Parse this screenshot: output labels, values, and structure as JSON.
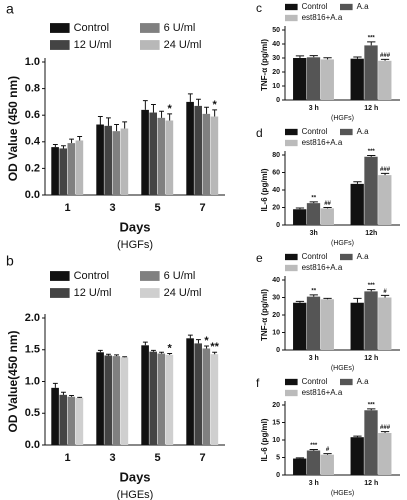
{
  "chart_data": [
    {
      "type": "bar",
      "label": "a",
      "xlabel": "Days",
      "subtitle": "(HGFs)",
      "ylabel": "OD Value (450 nm)",
      "categories": [
        "1",
        "3",
        "5",
        "7"
      ],
      "series": [
        {
          "name": "Control",
          "color": "#111111",
          "values": [
            0.36,
            0.53,
            0.64,
            0.7
          ],
          "errors": [
            0.02,
            0.06,
            0.07,
            0.06
          ],
          "stars": [
            null,
            null,
            null,
            null
          ]
        },
        {
          "name": "12 U/ml",
          "color": "#444444",
          "values": [
            0.35,
            0.52,
            0.62,
            0.67
          ],
          "errors": [
            0.02,
            0.06,
            0.06,
            0.05
          ],
          "stars": [
            null,
            null,
            null,
            null
          ]
        },
        {
          "name": "6 U/ml",
          "color": "#808080",
          "values": [
            0.39,
            0.48,
            0.58,
            0.61
          ],
          "errors": [
            0.03,
            0.05,
            0.05,
            0.05
          ],
          "stars": [
            null,
            null,
            null,
            null
          ]
        },
        {
          "name": "24 U/ml",
          "color": "#b8b8b8",
          "values": [
            0.41,
            0.5,
            0.56,
            0.59
          ],
          "errors": [
            0.03,
            0.05,
            0.05,
            0.05
          ],
          "stars": [
            null,
            null,
            "*",
            "*"
          ]
        }
      ],
      "ylim": [
        0,
        1
      ],
      "yticks": [
        {
          "value": 0,
          "label": "0.0"
        },
        0.2,
        0.4,
        0.6,
        0.8,
        {
          "value": 1,
          "label": "1.0"
        }
      ]
    },
    {
      "type": "bar",
      "label": "b",
      "xlabel": "Days",
      "subtitle": "(HGEs)",
      "ylabel": "OD Value(450 nm)",
      "categories": [
        "1",
        "3",
        "5",
        "7"
      ],
      "series": [
        {
          "name": "Control",
          "color": "#111111",
          "values": [
            0.9,
            1.46,
            1.57,
            1.68
          ],
          "errors": [
            0.07,
            0.03,
            0.05,
            0.05
          ],
          "stars": [
            null,
            null,
            null,
            null
          ]
        },
        {
          "name": "12 U/ml",
          "color": "#444444",
          "values": [
            0.79,
            1.41,
            1.47,
            1.6
          ],
          "errors": [
            0.04,
            0.02,
            0.02,
            0.06
          ],
          "stars": [
            null,
            null,
            null,
            null
          ]
        },
        {
          "name": "6 U/ml",
          "color": "#808080",
          "values": [
            0.76,
            1.4,
            1.44,
            1.52
          ],
          "errors": [
            0.02,
            0.02,
            0.02,
            0.04
          ],
          "stars": [
            null,
            null,
            null,
            "*"
          ]
        },
        {
          "name": "24 U/ml",
          "color": "#cfcfcf",
          "values": [
            0.74,
            1.38,
            1.42,
            1.43
          ],
          "errors": [
            0.01,
            0.01,
            0.02,
            0.03
          ],
          "stars": [
            null,
            null,
            "*",
            "**"
          ]
        }
      ],
      "ylim": [
        0,
        2
      ],
      "yticks": [
        {
          "value": 0,
          "label": "0.0"
        },
        0.5,
        {
          "value": 1,
          "label": "1.0"
        },
        1.5,
        {
          "value": 2,
          "label": "2.0"
        }
      ]
    },
    {
      "type": "bar",
      "label": "c",
      "subtitle": "(HGFs)",
      "ylabel": "TNF-α (pg/ml)",
      "categories": [
        "3 h",
        "12 h"
      ],
      "series": [
        {
          "name": "Control",
          "color": "#111111",
          "values": [
            30,
            29.5
          ],
          "errors": [
            1.5,
            1.2
          ],
          "stars": [
            null,
            null
          ]
        },
        {
          "name": "A.a",
          "color": "#555555",
          "values": [
            30.5,
            39
          ],
          "errors": [
            1.2,
            2.5
          ],
          "stars": [
            null,
            "***"
          ]
        },
        {
          "name": "est816+A.a",
          "color": "#bbbbbb",
          "values": [
            29,
            28
          ],
          "errors": [
            1.2,
            1
          ],
          "stars": [
            null,
            "###"
          ]
        }
      ],
      "ylim": [
        0,
        50
      ],
      "yticks": [
        0,
        10,
        20,
        30,
        40,
        50
      ]
    },
    {
      "type": "bar",
      "label": "d",
      "subtitle": "(HGFs)",
      "ylabel": "IL-6 (pg/ml)",
      "categories": [
        "3h",
        "12h"
      ],
      "series": [
        {
          "name": "Control",
          "color": "#111111",
          "values": [
            18,
            47
          ],
          "errors": [
            1.5,
            2.5
          ],
          "stars": [
            null,
            null
          ]
        },
        {
          "name": "A.a",
          "color": "#555555",
          "values": [
            25,
            78
          ],
          "errors": [
            1.5,
            1.5
          ],
          "stars": [
            "**",
            "***"
          ]
        },
        {
          "name": "est816+A.a",
          "color": "#bbbbbb",
          "values": [
            19,
            57
          ],
          "errors": [
            1,
            2
          ],
          "stars": [
            "##",
            "###"
          ]
        }
      ],
      "ylim": [
        0,
        80
      ],
      "yticks": [
        0,
        20,
        40,
        60,
        80
      ]
    },
    {
      "type": "bar",
      "label": "e",
      "subtitle": "(HGEs)",
      "ylabel": "TNF-α (pg/ml)",
      "categories": [
        "3 h",
        "12 h"
      ],
      "series": [
        {
          "name": "Control",
          "color": "#111111",
          "values": [
            27,
            27
          ],
          "errors": [
            0.8,
            2.5
          ],
          "stars": [
            null,
            null
          ]
        },
        {
          "name": "A.a",
          "color": "#555555",
          "values": [
            30.5,
            33.5
          ],
          "errors": [
            1,
            1
          ],
          "stars": [
            "**",
            "***"
          ]
        },
        {
          "name": "est816+A.a",
          "color": "#bbbbbb",
          "values": [
            29,
            30
          ],
          "errors": [
            0.5,
            1.2
          ],
          "stars": [
            null,
            "#"
          ]
        }
      ],
      "ylim": [
        0,
        40
      ],
      "yticks": [
        0,
        10,
        20,
        30,
        40
      ]
    },
    {
      "type": "bar",
      "label": "f",
      "subtitle": "(HGEs)",
      "ylabel": "IL-6 (pg/ml)",
      "categories": [
        "3 h",
        "12 h"
      ],
      "series": [
        {
          "name": "Control",
          "color": "#111111",
          "values": [
            4.7,
            10.8
          ],
          "errors": [
            0.2,
            0.3
          ],
          "stars": [
            null,
            null
          ]
        },
        {
          "name": "A.a",
          "color": "#555555",
          "values": [
            7,
            18.5
          ],
          "errors": [
            0.3,
            0.4
          ],
          "stars": [
            "***",
            "***"
          ]
        },
        {
          "name": "est816+A.a",
          "color": "#bbbbbb",
          "values": [
            5.8,
            12
          ],
          "errors": [
            0.3,
            0.4
          ],
          "stars": [
            "#",
            "###"
          ]
        }
      ],
      "ylim": [
        0,
        20
      ],
      "yticks": [
        0,
        5,
        10,
        15,
        20
      ]
    }
  ]
}
